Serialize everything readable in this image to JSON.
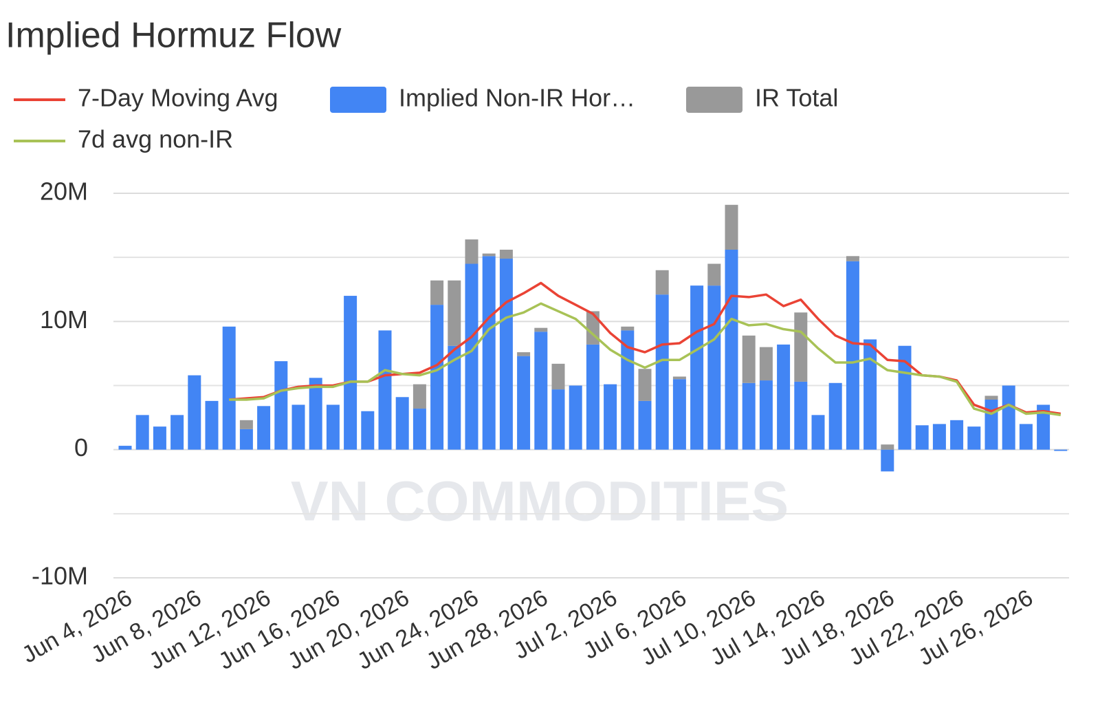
{
  "chart_data": {
    "type": "bar",
    "title": "Implied Hormuz Flow",
    "watermark": "VN COMMODITIES",
    "categories": [
      "Jun 4, 2026",
      null,
      null,
      null,
      "Jun 8, 2026",
      null,
      null,
      null,
      "Jun 12, 2026",
      null,
      null,
      null,
      "Jun 16, 2026",
      null,
      null,
      null,
      "Jun 20, 2026",
      null,
      null,
      null,
      "Jun 24, 2026",
      null,
      null,
      null,
      "Jun 28, 2026",
      null,
      null,
      null,
      "Jul 2, 2026",
      null,
      null,
      null,
      "Jul 6, 2026",
      null,
      null,
      null,
      "Jul 10, 2026",
      null,
      null,
      null,
      "Jul 14, 2026",
      null,
      null,
      null,
      "Jul 18, 2026",
      null,
      null,
      null,
      "Jul 22, 2026",
      null,
      null,
      null,
      "Jul 26, 2026",
      null,
      null
    ],
    "series": [
      {
        "name": "7-Day Moving Avg",
        "type": "line",
        "color": "#ea4335",
        "values": [
          null,
          null,
          null,
          null,
          null,
          null,
          3900000.0,
          4000000.0,
          4100000.0,
          4600000.0,
          4900000.0,
          5000000.0,
          5000000.0,
          5300000.0,
          5300000.0,
          5800000.0,
          5900000.0,
          6000000.0,
          6600000.0,
          7800000.0,
          8800000.0,
          10300000.0,
          11500000.0,
          12200000.0,
          13000000.0,
          12000000.0,
          11300000.0,
          10600000.0,
          9100000.0,
          8000000.0,
          7600000.0,
          8200000.0,
          8300000.0,
          9200000.0,
          9800000.0,
          12000000.0,
          11900000.0,
          12100000.0,
          11200000.0,
          11700000.0,
          10200000.0,
          8900000.0,
          8300000.0,
          8200000.0,
          7000000.0,
          6900000.0,
          5800000.0,
          5700000.0,
          5400000.0,
          3500000.0,
          3000000.0,
          3500000.0,
          2900000.0,
          3000000.0,
          2800000.0
        ]
      },
      {
        "name": "Implied Non-IR Hor…",
        "type": "bar",
        "color": "#4285f4",
        "values": [
          300000.0,
          2700000.0,
          1800000.0,
          2700000.0,
          5800000.0,
          3800000.0,
          9600000.0,
          1600000.0,
          3400000.0,
          6900000.0,
          3500000.0,
          5600000.0,
          3500000.0,
          12000000.0,
          3000000.0,
          9300000.0,
          4100000.0,
          3200000.0,
          11300000.0,
          8100000.0,
          14500000.0,
          15100000.0,
          14900000.0,
          7300000.0,
          9200000.0,
          4700000.0,
          5000000.0,
          8200000.0,
          5100000.0,
          9300000.0,
          3800000.0,
          12100000.0,
          5500000.0,
          12800000.0,
          12800000.0,
          15600000.0,
          5200000.0,
          5400000.0,
          8200000.0,
          5300000.0,
          2700000.0,
          5200000.0,
          14700000.0,
          8600000.0,
          -1700000.0,
          8100000.0,
          1900000.0,
          2000000.0,
          2300000.0,
          1800000.0,
          3900000.0,
          5000000.0,
          2000000.0,
          3500000.0,
          -100000.0
        ]
      },
      {
        "name": "IR Total",
        "type": "bar",
        "color": "#999999",
        "values": [
          0,
          0,
          0,
          0,
          0,
          0,
          0,
          700000.0,
          0,
          0,
          0,
          0,
          0,
          0,
          0,
          0,
          0,
          1900000.0,
          1900000.0,
          5100000.0,
          1900000.0,
          200000.0,
          700000.0,
          300000.0,
          300000.0,
          2000000.0,
          0,
          2600000.0,
          0,
          300000.0,
          2500000.0,
          1900000.0,
          200000.0,
          0,
          1700000.0,
          3500000.0,
          3700000.0,
          2600000.0,
          0,
          5400000.0,
          0,
          0,
          400000.0,
          0,
          400000.0,
          0,
          0,
          0,
          0,
          0,
          300000.0,
          0,
          0,
          0,
          0
        ]
      },
      {
        "name": "7d avg non-IR",
        "type": "line",
        "color": "#a8c256",
        "values": [
          null,
          null,
          null,
          null,
          null,
          null,
          3900000.0,
          3900000.0,
          4000000.0,
          4600000.0,
          4800000.0,
          4900000.0,
          4900000.0,
          5300000.0,
          5300000.0,
          6200000.0,
          5900000.0,
          5800000.0,
          6200000.0,
          7000000.0,
          7700000.0,
          9400000.0,
          10300000.0,
          10700000.0,
          11400000.0,
          10800000.0,
          10200000.0,
          9000000.0,
          7800000.0,
          7000000.0,
          6400000.0,
          7000000.0,
          7000000.0,
          7800000.0,
          8600000.0,
          10200000.0,
          9700000.0,
          9800000.0,
          9400000.0,
          9200000.0,
          7900000.0,
          6800000.0,
          6800000.0,
          7100000.0,
          6200000.0,
          6000000.0,
          5800000.0,
          5700000.0,
          5300000.0,
          3200000.0,
          2800000.0,
          3500000.0,
          2800000.0,
          2900000.0,
          2700000.0
        ]
      }
    ],
    "stacked": true,
    "ylim": [
      -10000000,
      20000000
    ],
    "yticks": [
      {
        "value": -10000000,
        "label": "-10M"
      },
      0,
      {
        "value": 10000000,
        "label": "10M"
      },
      {
        "value": 20000000,
        "label": "20M"
      }
    ],
    "yminor_grid": [
      -5000000,
      5000000,
      15000000
    ],
    "grid": true
  }
}
